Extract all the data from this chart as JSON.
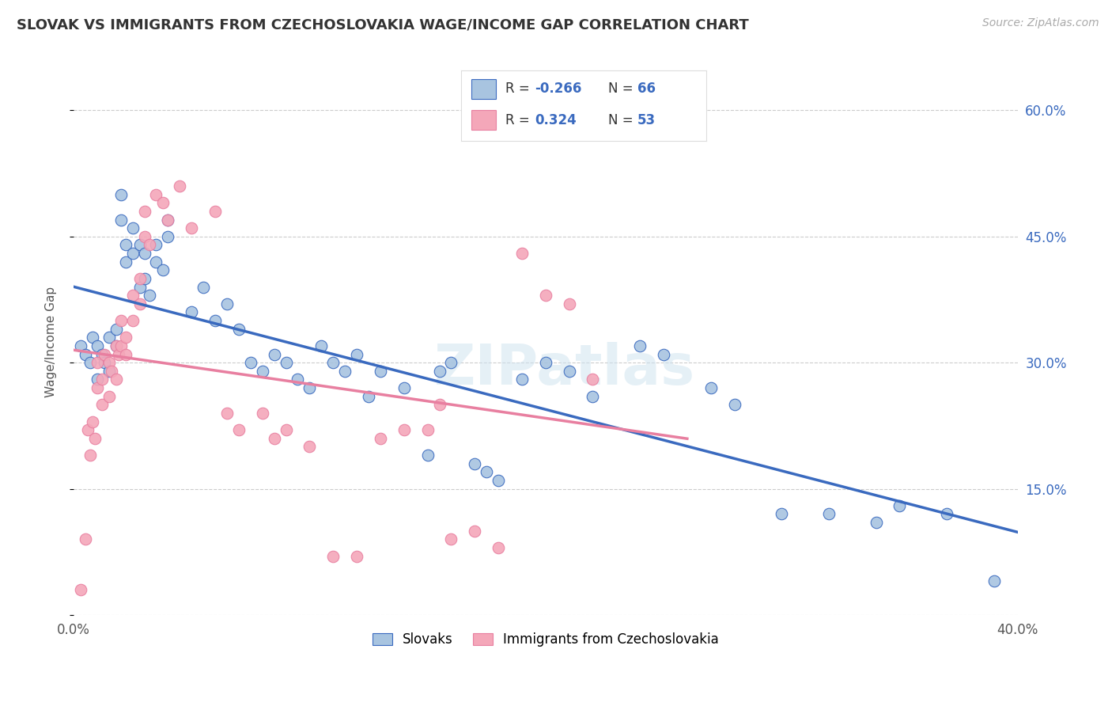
{
  "title": "SLOVAK VS IMMIGRANTS FROM CZECHOSLOVAKIA WAGE/INCOME GAP CORRELATION CHART",
  "source": "Source: ZipAtlas.com",
  "ylabel": "Wage/Income Gap",
  "xlim": [
    0.0,
    0.4
  ],
  "ylim": [
    0.0,
    0.65
  ],
  "ytick_positions": [
    0.0,
    0.15,
    0.3,
    0.45,
    0.6
  ],
  "ytick_labels": [
    "",
    "15.0%",
    "30.0%",
    "45.0%",
    "60.0%"
  ],
  "blue_R": "-0.266",
  "blue_N": "66",
  "pink_R": "0.324",
  "pink_N": "53",
  "blue_color": "#a8c4e0",
  "pink_color": "#f4a7b9",
  "blue_line_color": "#3a6abf",
  "pink_line_color": "#e87fa0",
  "legend_label_blue": "Slovaks",
  "legend_label_pink": "Immigrants from Czechoslovakia",
  "watermark": "ZIPatlas",
  "blue_scatter_x": [
    0.003,
    0.005,
    0.007,
    0.008,
    0.01,
    0.01,
    0.012,
    0.013,
    0.015,
    0.015,
    0.018,
    0.018,
    0.02,
    0.02,
    0.022,
    0.022,
    0.025,
    0.025,
    0.028,
    0.028,
    0.03,
    0.03,
    0.032,
    0.035,
    0.035,
    0.038,
    0.04,
    0.04,
    0.05,
    0.055,
    0.06,
    0.065,
    0.07,
    0.075,
    0.08,
    0.085,
    0.09,
    0.095,
    0.1,
    0.105,
    0.11,
    0.115,
    0.12,
    0.125,
    0.13,
    0.14,
    0.15,
    0.155,
    0.16,
    0.17,
    0.175,
    0.18,
    0.19,
    0.2,
    0.21,
    0.22,
    0.24,
    0.25,
    0.27,
    0.28,
    0.3,
    0.32,
    0.34,
    0.35,
    0.37,
    0.39
  ],
  "blue_scatter_y": [
    0.32,
    0.31,
    0.3,
    0.33,
    0.32,
    0.28,
    0.31,
    0.3,
    0.33,
    0.29,
    0.32,
    0.34,
    0.5,
    0.47,
    0.44,
    0.42,
    0.43,
    0.46,
    0.44,
    0.39,
    0.43,
    0.4,
    0.38,
    0.44,
    0.42,
    0.41,
    0.47,
    0.45,
    0.36,
    0.39,
    0.35,
    0.37,
    0.34,
    0.3,
    0.29,
    0.31,
    0.3,
    0.28,
    0.27,
    0.32,
    0.3,
    0.29,
    0.31,
    0.26,
    0.29,
    0.27,
    0.19,
    0.29,
    0.3,
    0.18,
    0.17,
    0.16,
    0.28,
    0.3,
    0.29,
    0.26,
    0.32,
    0.31,
    0.27,
    0.25,
    0.12,
    0.12,
    0.11,
    0.13,
    0.12,
    0.04
  ],
  "pink_scatter_x": [
    0.003,
    0.005,
    0.006,
    0.007,
    0.008,
    0.009,
    0.01,
    0.01,
    0.012,
    0.012,
    0.013,
    0.015,
    0.015,
    0.016,
    0.018,
    0.018,
    0.019,
    0.02,
    0.02,
    0.022,
    0.022,
    0.025,
    0.025,
    0.028,
    0.028,
    0.03,
    0.03,
    0.032,
    0.035,
    0.038,
    0.04,
    0.045,
    0.05,
    0.06,
    0.065,
    0.07,
    0.08,
    0.085,
    0.09,
    0.1,
    0.11,
    0.12,
    0.13,
    0.14,
    0.15,
    0.155,
    0.16,
    0.17,
    0.18,
    0.19,
    0.2,
    0.21,
    0.22
  ],
  "pink_scatter_y": [
    0.03,
    0.09,
    0.22,
    0.19,
    0.23,
    0.21,
    0.3,
    0.27,
    0.28,
    0.25,
    0.31,
    0.3,
    0.26,
    0.29,
    0.32,
    0.28,
    0.31,
    0.35,
    0.32,
    0.33,
    0.31,
    0.38,
    0.35,
    0.4,
    0.37,
    0.48,
    0.45,
    0.44,
    0.5,
    0.49,
    0.47,
    0.51,
    0.46,
    0.48,
    0.24,
    0.22,
    0.24,
    0.21,
    0.22,
    0.2,
    0.07,
    0.07,
    0.21,
    0.22,
    0.22,
    0.25,
    0.09,
    0.1,
    0.08,
    0.43,
    0.38,
    0.37,
    0.28
  ]
}
